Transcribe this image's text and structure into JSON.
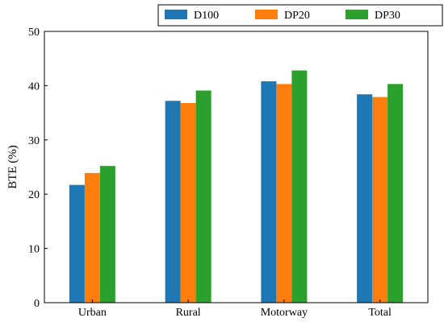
{
  "chart_data": {
    "type": "bar",
    "title": "",
    "xlabel": "",
    "ylabel": "BTE (%)",
    "categories": [
      "Urban",
      "Rural",
      "Motorway",
      "Total"
    ],
    "series": [
      {
        "name": "D100",
        "color": "#1f77b4",
        "values": [
          21.7,
          37.2,
          40.8,
          38.4
        ]
      },
      {
        "name": "DP20",
        "color": "#ff7f0e",
        "values": [
          23.9,
          36.8,
          40.3,
          37.9
        ]
      },
      {
        "name": "DP30",
        "color": "#2ca02c",
        "values": [
          25.2,
          39.1,
          42.8,
          40.3
        ]
      }
    ],
    "ylim": [
      0,
      50
    ],
    "yticks": [
      0,
      10,
      20,
      30,
      40,
      50
    ],
    "grid": false,
    "legend_position": "top-right"
  }
}
